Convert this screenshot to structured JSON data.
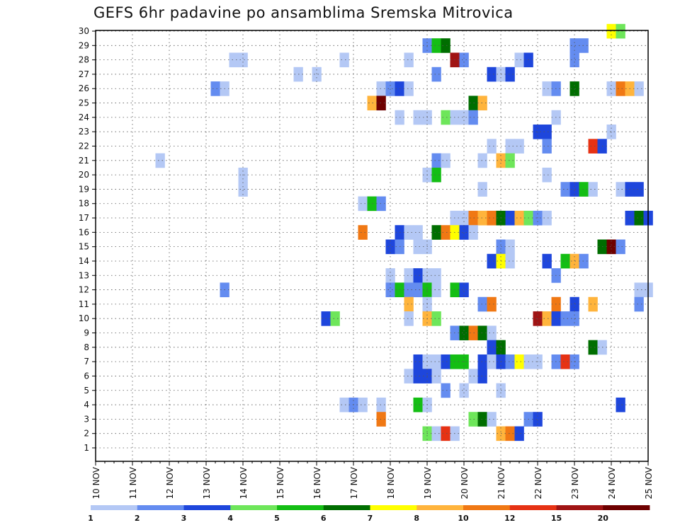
{
  "chart_data": {
    "type": "heatmap",
    "title": "GEFS 6hr padavine po ansamblima Sremska Mitrovica",
    "xlabel": "",
    "ylabel": "",
    "x_ticks": [
      "10 NOV",
      "11 NOV",
      "12 NOV",
      "13 NOV",
      "14 NOV",
      "15 NOV",
      "16 NOV",
      "17 NOV",
      "18 NOV",
      "19 NOV",
      "20 NOV",
      "21 NOV",
      "22 NOV",
      "23 NOV",
      "24 NOV",
      "25 NOV"
    ],
    "x_range": [
      10,
      25
    ],
    "x_step_days": 0.25,
    "y_range": [
      1,
      30
    ],
    "y_ticks": [
      1,
      2,
      3,
      4,
      5,
      6,
      7,
      8,
      9,
      10,
      11,
      12,
      13,
      14,
      15,
      16,
      17,
      18,
      19,
      20,
      21,
      22,
      23,
      24,
      25,
      26,
      27,
      28,
      29,
      30
    ],
    "grid": true,
    "legend_position": "bottom",
    "legend": {
      "labels": [
        "1",
        "2",
        "3",
        "4",
        "5",
        "6",
        "7",
        "8",
        "10",
        "12",
        "15",
        "20"
      ],
      "colors": [
        "#b4c8f5",
        "#648cf0",
        "#1e46dc",
        "#6ee65a",
        "#14be14",
        "#006e00",
        "#ffff00",
        "#ffb43c",
        "#f07814",
        "#e63214",
        "#a01414",
        "#6e0000"
      ]
    },
    "cells": [
      {
        "y": 30,
        "x": [
          [
            24.0,
            6
          ],
          [
            24.25,
            3
          ]
        ]
      },
      {
        "y": 29,
        "x": [
          [
            19.0,
            1
          ],
          [
            19.25,
            4
          ],
          [
            19.5,
            5
          ],
          [
            23.0,
            1
          ],
          [
            23.25,
            1
          ]
        ]
      },
      {
        "y": 28,
        "x": [
          [
            13.75,
            0
          ],
          [
            14.0,
            0
          ],
          [
            16.75,
            0
          ],
          [
            18.5,
            0
          ],
          [
            19.75,
            10
          ],
          [
            20.0,
            1
          ],
          [
            21.5,
            0
          ],
          [
            21.75,
            2
          ],
          [
            23.0,
            1
          ]
        ]
      },
      {
        "y": 27,
        "x": [
          [
            15.5,
            0
          ],
          [
            16.0,
            0
          ],
          [
            19.25,
            1
          ],
          [
            20.75,
            2
          ],
          [
            21.0,
            0
          ],
          [
            21.25,
            2
          ]
        ]
      },
      {
        "y": 26,
        "x": [
          [
            13.25,
            1
          ],
          [
            13.5,
            0
          ],
          [
            17.75,
            0
          ],
          [
            18.0,
            1
          ],
          [
            18.25,
            2
          ],
          [
            18.5,
            0
          ],
          [
            22.25,
            0
          ],
          [
            22.5,
            1
          ],
          [
            23.0,
            5
          ],
          [
            24.0,
            0
          ],
          [
            24.25,
            8
          ],
          [
            24.5,
            7
          ],
          [
            24.75,
            0
          ]
        ]
      },
      {
        "y": 25,
        "x": [
          [
            17.5,
            7
          ],
          [
            17.75,
            11
          ],
          [
            20.25,
            5
          ],
          [
            20.5,
            7
          ]
        ]
      },
      {
        "y": 24,
        "x": [
          [
            18.25,
            0
          ],
          [
            18.75,
            0
          ],
          [
            19.0,
            0
          ],
          [
            19.5,
            3
          ],
          [
            19.75,
            0
          ],
          [
            20.0,
            0
          ],
          [
            20.25,
            1
          ],
          [
            22.5,
            0
          ]
        ]
      },
      {
        "y": 23,
        "x": [
          [
            22.0,
            2
          ],
          [
            22.25,
            2
          ],
          [
            24.0,
            0
          ]
        ]
      },
      {
        "y": 22,
        "x": [
          [
            20.75,
            0
          ],
          [
            21.25,
            0
          ],
          [
            21.5,
            0
          ],
          [
            22.25,
            1
          ],
          [
            23.5,
            9
          ],
          [
            23.75,
            2
          ]
        ]
      },
      {
        "y": 21,
        "x": [
          [
            11.75,
            0
          ],
          [
            19.25,
            1
          ],
          [
            19.5,
            0
          ],
          [
            20.5,
            0
          ],
          [
            21.0,
            7
          ],
          [
            21.25,
            3
          ]
        ]
      },
      {
        "y": 20,
        "x": [
          [
            14.0,
            0
          ],
          [
            19.0,
            0
          ],
          [
            19.25,
            4
          ],
          [
            22.25,
            0
          ]
        ]
      },
      {
        "y": 19,
        "x": [
          [
            14.0,
            0
          ],
          [
            20.5,
            0
          ],
          [
            22.75,
            1
          ],
          [
            23.0,
            2
          ],
          [
            23.25,
            4
          ],
          [
            23.5,
            0
          ],
          [
            24.25,
            0
          ],
          [
            24.5,
            2
          ],
          [
            24.75,
            2
          ]
        ]
      },
      {
        "y": 18,
        "x": [
          [
            17.25,
            0
          ],
          [
            17.5,
            4
          ],
          [
            17.75,
            1
          ]
        ]
      },
      {
        "y": 17,
        "x": [
          [
            19.75,
            0
          ],
          [
            20.0,
            0
          ],
          [
            20.25,
            8
          ],
          [
            20.5,
            7
          ],
          [
            20.75,
            8
          ],
          [
            21.0,
            5
          ],
          [
            21.25,
            2
          ],
          [
            21.5,
            7
          ],
          [
            21.75,
            3
          ],
          [
            22.0,
            1
          ],
          [
            22.25,
            0
          ],
          [
            24.5,
            2
          ],
          [
            24.75,
            5
          ],
          [
            25.0,
            2
          ]
        ]
      },
      {
        "y": 16,
        "x": [
          [
            17.25,
            8
          ],
          [
            18.25,
            2
          ],
          [
            18.5,
            0
          ],
          [
            18.75,
            0
          ],
          [
            19.25,
            5
          ],
          [
            19.5,
            8
          ],
          [
            19.75,
            6
          ],
          [
            20.0,
            2
          ],
          [
            20.25,
            0
          ]
        ]
      },
      {
        "y": 15,
        "x": [
          [
            18.0,
            2
          ],
          [
            18.25,
            1
          ],
          [
            18.75,
            0
          ],
          [
            19.0,
            0
          ],
          [
            21.0,
            1
          ],
          [
            21.25,
            0
          ],
          [
            23.75,
            5
          ],
          [
            24.0,
            11
          ],
          [
            24.25,
            1
          ]
        ]
      },
      {
        "y": 14,
        "x": [
          [
            20.75,
            2
          ],
          [
            21.0,
            6
          ],
          [
            21.25,
            0
          ],
          [
            22.25,
            2
          ],
          [
            22.75,
            4
          ],
          [
            23.0,
            7
          ],
          [
            23.25,
            1
          ]
        ]
      },
      {
        "y": 13,
        "x": [
          [
            18.0,
            0
          ],
          [
            18.5,
            0
          ],
          [
            18.75,
            2
          ],
          [
            19.0,
            0
          ],
          [
            19.25,
            0
          ],
          [
            22.5,
            1
          ]
        ]
      },
      {
        "y": 12,
        "x": [
          [
            13.5,
            1
          ],
          [
            18.0,
            1
          ],
          [
            18.25,
            4
          ],
          [
            18.5,
            1
          ],
          [
            18.75,
            1
          ],
          [
            19.0,
            4
          ],
          [
            19.25,
            0
          ],
          [
            19.75,
            4
          ],
          [
            20.0,
            2
          ],
          [
            24.75,
            0
          ],
          [
            25.0,
            0
          ]
        ]
      },
      {
        "y": 11,
        "x": [
          [
            18.5,
            7
          ],
          [
            19.0,
            0
          ],
          [
            20.5,
            1
          ],
          [
            20.75,
            8
          ],
          [
            22.5,
            8
          ],
          [
            23.0,
            2
          ],
          [
            23.5,
            7
          ],
          [
            24.75,
            1
          ]
        ]
      },
      {
        "y": 10,
        "x": [
          [
            16.25,
            2
          ],
          [
            16.5,
            3
          ],
          [
            18.5,
            0
          ],
          [
            19.0,
            7
          ],
          [
            19.25,
            3
          ],
          [
            22.0,
            10
          ],
          [
            22.25,
            7
          ],
          [
            22.5,
            2
          ],
          [
            22.75,
            1
          ],
          [
            23.0,
            1
          ]
        ]
      },
      {
        "y": 9,
        "x": [
          [
            19.75,
            1
          ],
          [
            20.0,
            5
          ],
          [
            20.25,
            8
          ],
          [
            20.5,
            5
          ],
          [
            20.75,
            0
          ]
        ]
      },
      {
        "y": 8,
        "x": [
          [
            20.75,
            2
          ],
          [
            21.0,
            5
          ],
          [
            23.5,
            5
          ],
          [
            23.75,
            0
          ]
        ]
      },
      {
        "y": 7,
        "x": [
          [
            18.75,
            2
          ],
          [
            19.0,
            0
          ],
          [
            19.25,
            0
          ],
          [
            19.5,
            2
          ],
          [
            19.75,
            4
          ],
          [
            20.0,
            4
          ],
          [
            20.5,
            2
          ],
          [
            20.75,
            0
          ],
          [
            21.0,
            2
          ],
          [
            21.25,
            1
          ],
          [
            21.5,
            6
          ],
          [
            21.75,
            0
          ],
          [
            22.0,
            0
          ],
          [
            22.5,
            1
          ],
          [
            22.75,
            9
          ],
          [
            23.0,
            1
          ]
        ]
      },
      {
        "y": 6,
        "x": [
          [
            18.5,
            0
          ],
          [
            18.75,
            2
          ],
          [
            19.0,
            2
          ],
          [
            19.25,
            0
          ],
          [
            20.25,
            0
          ],
          [
            20.5,
            2
          ]
        ]
      },
      {
        "y": 5,
        "x": [
          [
            19.5,
            1
          ],
          [
            20.0,
            0
          ],
          [
            21.0,
            0
          ]
        ]
      },
      {
        "y": 4,
        "x": [
          [
            16.75,
            0
          ],
          [
            17.0,
            1
          ],
          [
            17.25,
            0
          ],
          [
            17.75,
            0
          ],
          [
            18.75,
            4
          ],
          [
            19.0,
            0
          ],
          [
            24.25,
            2
          ]
        ]
      },
      {
        "y": 3,
        "x": [
          [
            17.75,
            8
          ],
          [
            20.25,
            3
          ],
          [
            20.5,
            5
          ],
          [
            20.75,
            0
          ],
          [
            21.75,
            1
          ],
          [
            22.0,
            2
          ]
        ]
      },
      {
        "y": 2,
        "x": [
          [
            19.0,
            3
          ],
          [
            19.25,
            0
          ],
          [
            19.5,
            9
          ],
          [
            19.75,
            0
          ],
          [
            21.0,
            7
          ],
          [
            21.25,
            8
          ],
          [
            21.5,
            2
          ]
        ]
      },
      {
        "y": 1,
        "x": []
      }
    ]
  }
}
